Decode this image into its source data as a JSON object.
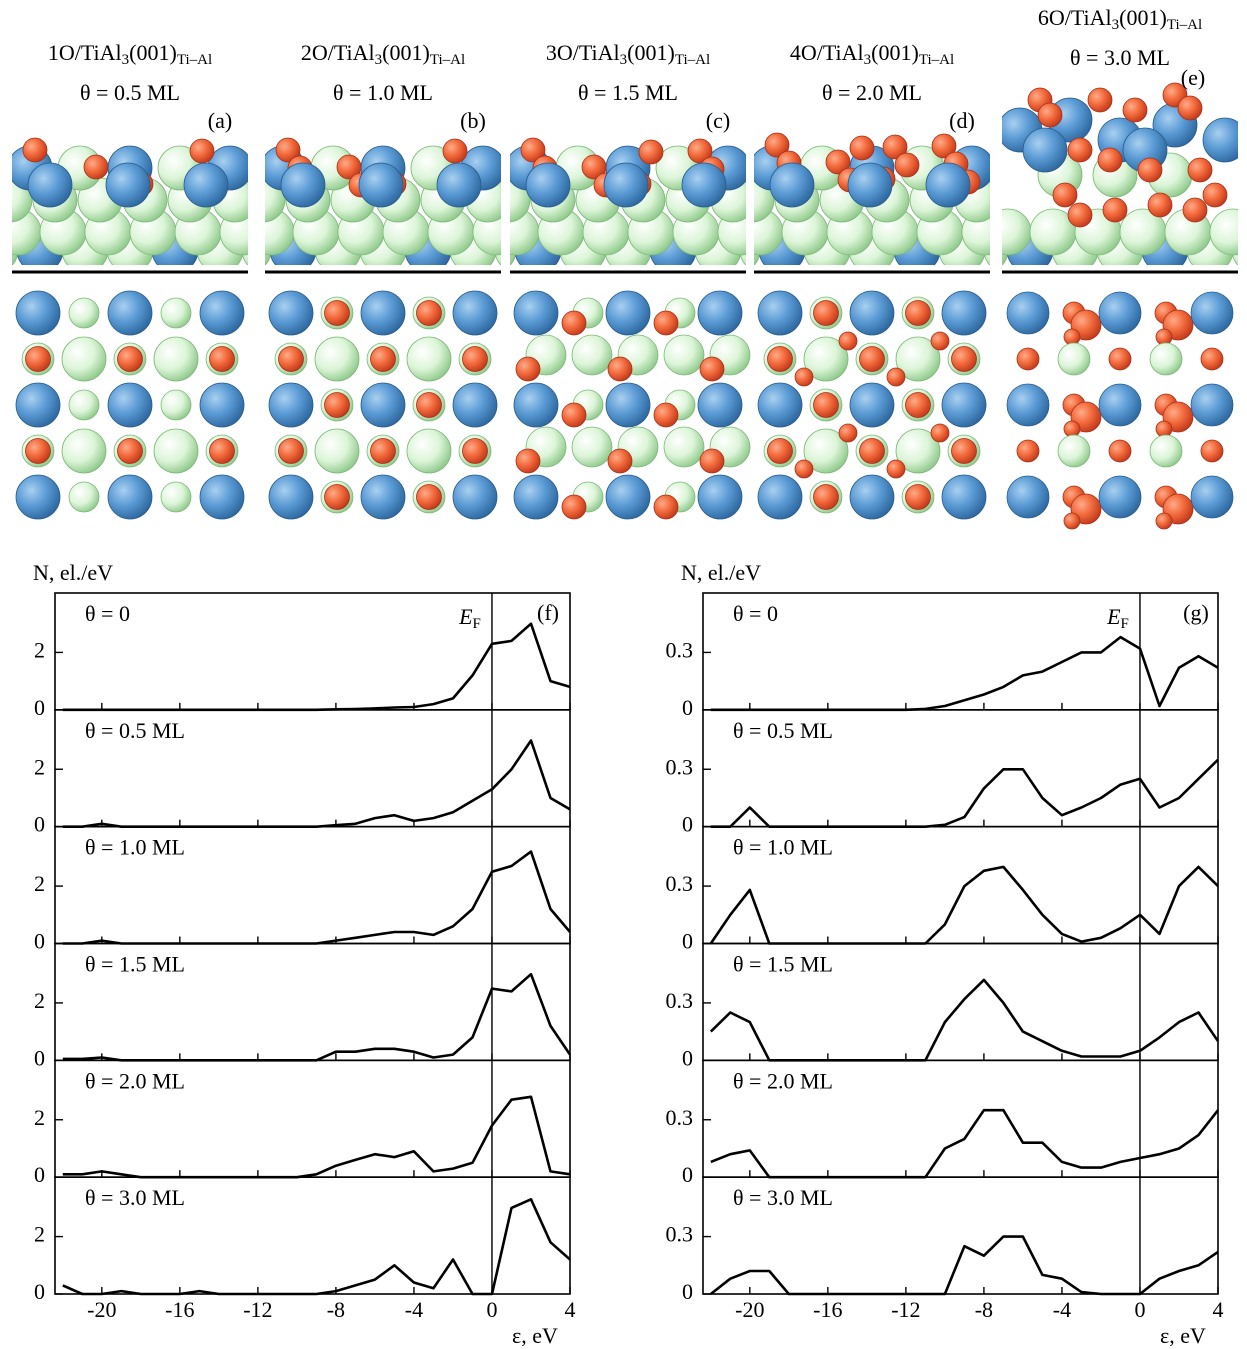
{
  "structures": [
    {
      "formula": {
        "prefix": "1O/TiAl",
        "sub1": "3",
        "mid": "(001)",
        "sub2": "Ti–Al"
      },
      "coverage": "θ = 0.5 ML",
      "label": "(a)"
    },
    {
      "formula": {
        "prefix": "2O/TiAl",
        "sub1": "3",
        "mid": "(001)",
        "sub2": "Ti–Al"
      },
      "coverage": "θ = 1.0 ML",
      "label": "(b)"
    },
    {
      "formula": {
        "prefix": "3O/TiAl",
        "sub1": "3",
        "mid": "(001)",
        "sub2": "Ti–Al"
      },
      "coverage": "θ = 1.5 ML",
      "label": "(c)"
    },
    {
      "formula": {
        "prefix": "4O/TiAl",
        "sub1": "3",
        "mid": "(001)",
        "sub2": "Ti–Al"
      },
      "coverage": "θ = 2.0 ML",
      "label": "(d)"
    },
    {
      "formula": {
        "prefix": "6O/TiAl",
        "sub1": "3",
        "mid": "(001)",
        "sub2": "Ti–Al"
      },
      "coverage": "θ = 3.0 ML",
      "label": "(e)"
    }
  ],
  "chart_data": [
    {
      "type": "line",
      "ylabel": "N, el./eV",
      "xlabel": "ε, eV",
      "panel_label": "(f)",
      "fermi_label": {
        "text": "E",
        "sub": "F"
      },
      "fermi_level": 0,
      "color": "#000000",
      "xlim": [
        -22.4,
        4
      ],
      "xticks": [
        -20,
        -16,
        -12,
        -8,
        -4,
        0,
        4
      ],
      "ylim": [
        0,
        4
      ],
      "yticks": [
        0,
        2
      ],
      "x": [
        -22,
        -21,
        -20,
        -19,
        -18,
        -17,
        -16,
        -15,
        -14,
        -13,
        -12,
        -11,
        -10,
        -9,
        -8,
        -7,
        -6,
        -5,
        -4,
        -3,
        -2,
        -1,
        0,
        1,
        2,
        3,
        4
      ],
      "panels": [
        {
          "label": "θ = 0",
          "values": [
            0,
            0,
            0,
            0,
            0,
            0,
            0,
            0,
            0,
            0,
            0,
            0,
            0,
            0,
            0.02,
            0.03,
            0.05,
            0.08,
            0.1,
            0.2,
            0.4,
            1.2,
            2.3,
            2.4,
            3.0,
            1.0,
            0.8
          ]
        },
        {
          "label": "θ = 0.5 ML",
          "values": [
            0,
            0,
            0.1,
            0,
            0,
            0,
            0,
            0,
            0,
            0,
            0,
            0,
            0,
            0,
            0.05,
            0.1,
            0.3,
            0.4,
            0.2,
            0.3,
            0.5,
            0.9,
            1.3,
            2.0,
            3.0,
            1.0,
            0.6
          ]
        },
        {
          "label": "θ = 1.0 ML",
          "values": [
            0,
            0,
            0.1,
            0,
            0,
            0,
            0,
            0,
            0,
            0,
            0,
            0,
            0,
            0,
            0.1,
            0.2,
            0.3,
            0.4,
            0.4,
            0.3,
            0.6,
            1.2,
            2.5,
            2.7,
            3.2,
            1.2,
            0.4
          ]
        },
        {
          "label": "θ = 1.5 ML",
          "values": [
            0.05,
            0.05,
            0.1,
            0,
            0,
            0,
            0,
            0,
            0,
            0,
            0,
            0,
            0,
            0,
            0.3,
            0.3,
            0.4,
            0.4,
            0.3,
            0.1,
            0.2,
            0.8,
            2.5,
            2.4,
            3.0,
            1.2,
            0.2
          ]
        },
        {
          "label": "θ = 2.0 ML",
          "values": [
            0.1,
            0.1,
            0.2,
            0.1,
            0,
            0,
            0,
            0,
            0,
            0,
            0,
            0,
            0,
            0.1,
            0.4,
            0.6,
            0.8,
            0.7,
            0.9,
            0.2,
            0.3,
            0.5,
            1.8,
            2.7,
            2.8,
            0.2,
            0.1
          ]
        },
        {
          "label": "θ = 3.0 ML",
          "values": [
            0.3,
            0,
            0,
            0.1,
            0,
            0,
            0,
            0.1,
            0,
            0,
            0,
            0,
            0,
            0,
            0.1,
            0.3,
            0.5,
            1.0,
            0.4,
            0.2,
            1.2,
            0,
            0,
            3.0,
            3.3,
            1.8,
            1.2
          ]
        }
      ]
    },
    {
      "type": "line",
      "ylabel": "N, el./eV",
      "xlabel": "ε, eV",
      "panel_label": "(g)",
      "fermi_label": {
        "text": "E",
        "sub": "F"
      },
      "fermi_level": 0,
      "color": "#000000",
      "xlim": [
        -22.4,
        4
      ],
      "xticks": [
        -20,
        -16,
        -12,
        -8,
        -4,
        0,
        4
      ],
      "ylim": [
        0,
        0.6
      ],
      "yticks": [
        0,
        0.3
      ],
      "x": [
        -22,
        -21,
        -20,
        -19,
        -18,
        -17,
        -16,
        -15,
        -14,
        -13,
        -12,
        -11,
        -10,
        -9,
        -8,
        -7,
        -6,
        -5,
        -4,
        -3,
        -2,
        -1,
        0,
        1,
        2,
        3,
        4
      ],
      "panels": [
        {
          "label": "θ = 0",
          "values": [
            0,
            0,
            0,
            0,
            0,
            0,
            0,
            0,
            0,
            0,
            0,
            0.005,
            0.02,
            0.05,
            0.08,
            0.12,
            0.18,
            0.2,
            0.25,
            0.3,
            0.3,
            0.38,
            0.32,
            0.02,
            0.22,
            0.28,
            0.22
          ]
        },
        {
          "label": "θ = 0.5 ML",
          "values": [
            0,
            0,
            0.1,
            0,
            0,
            0,
            0,
            0,
            0,
            0,
            0,
            0,
            0.01,
            0.05,
            0.2,
            0.3,
            0.3,
            0.15,
            0.06,
            0.1,
            0.15,
            0.22,
            0.25,
            0.1,
            0.15,
            0.25,
            0.35
          ]
        },
        {
          "label": "θ = 1.0 ML",
          "values": [
            0,
            0.15,
            0.28,
            0,
            0,
            0,
            0,
            0,
            0,
            0,
            0,
            0,
            0.1,
            0.3,
            0.38,
            0.4,
            0.28,
            0.15,
            0.05,
            0.01,
            0.03,
            0.08,
            0.15,
            0.05,
            0.3,
            0.4,
            0.3
          ]
        },
        {
          "label": "θ = 1.5 ML",
          "values": [
            0.15,
            0.25,
            0.2,
            0,
            0,
            0,
            0,
            0,
            0,
            0,
            0,
            0,
            0.2,
            0.32,
            0.42,
            0.3,
            0.15,
            0.1,
            0.05,
            0.02,
            0.02,
            0.02,
            0.05,
            0.12,
            0.2,
            0.25,
            0.1
          ]
        },
        {
          "label": "θ = 2.0 ML",
          "values": [
            0.08,
            0.12,
            0.14,
            0,
            0,
            0,
            0,
            0,
            0,
            0,
            0,
            0,
            0.15,
            0.2,
            0.35,
            0.35,
            0.18,
            0.18,
            0.08,
            0.05,
            0.05,
            0.08,
            0.1,
            0.12,
            0.15,
            0.22,
            0.35
          ]
        },
        {
          "label": "θ = 3.0 ML",
          "values": [
            0,
            0.08,
            0.12,
            0.12,
            0,
            0,
            0,
            0,
            0,
            0,
            0,
            0,
            0,
            0.25,
            0.2,
            0.3,
            0.3,
            0.1,
            0.08,
            0.01,
            0,
            0,
            0,
            0.08,
            0.12,
            0.15,
            0.22
          ]
        }
      ]
    }
  ]
}
